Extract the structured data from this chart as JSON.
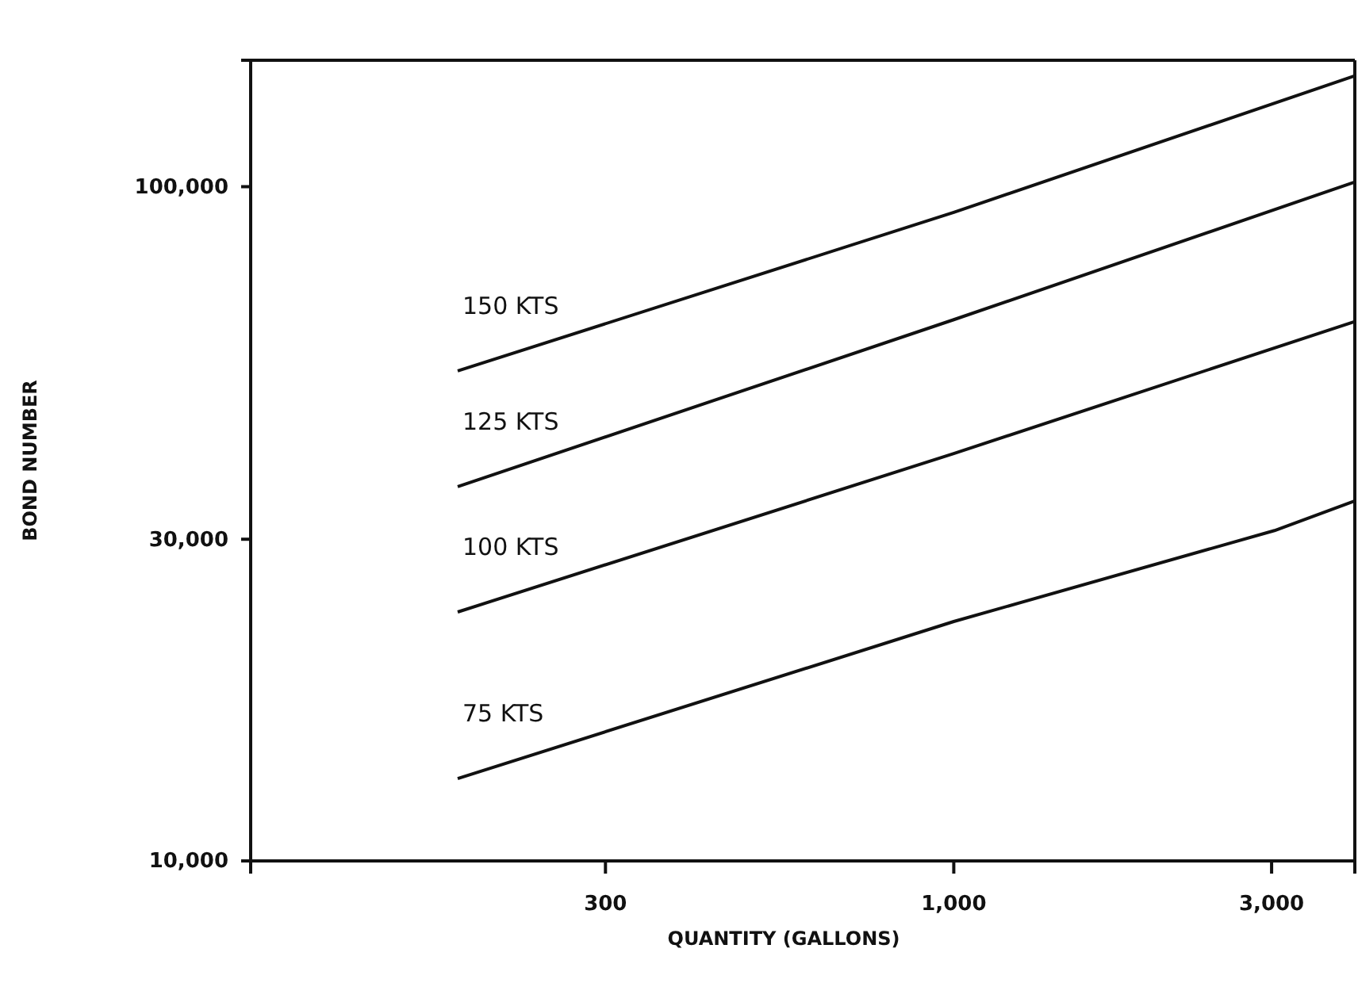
{
  "chart_data": {
    "type": "line",
    "xlabel": "QUANTITY (GALLONS)",
    "ylabel": "BOND NUMBER",
    "log": "xy",
    "grid": false,
    "marker": "none",
    "line_style": "solid",
    "xlim": [
      88,
      4000
    ],
    "ylim": [
      10000,
      154000
    ],
    "xticks": [
      300,
      {
        "value": 1000,
        "label": "1,000"
      },
      {
        "value": 3000,
        "label": "3,000"
      }
    ],
    "yticks": [
      {
        "value": 10000,
        "label": "10,000"
      },
      {
        "value": 30000,
        "label": "30,000"
      },
      {
        "value": 100000,
        "label": "100,000"
      }
    ],
    "series": [
      {
        "name": "150 KTS",
        "color": "#111111",
        "x": [
          180,
          1000,
          4000
        ],
        "values": [
          53300,
          91600,
          146000
        ]
      },
      {
        "name": "125 KTS",
        "color": "#111111",
        "x": [
          180,
          1000,
          4000
        ],
        "values": [
          35900,
          63500,
          101600
        ]
      },
      {
        "name": "100 KTS",
        "color": "#111111",
        "x": [
          180,
          1000,
          4000
        ],
        "values": [
          23400,
          40200,
          63100
        ]
      },
      {
        "name": "75 KTS",
        "color": "#111111",
        "x": [
          180,
          1000,
          3030,
          4000
        ],
        "values": [
          13250,
          22650,
          30900,
          34200
        ]
      }
    ]
  }
}
